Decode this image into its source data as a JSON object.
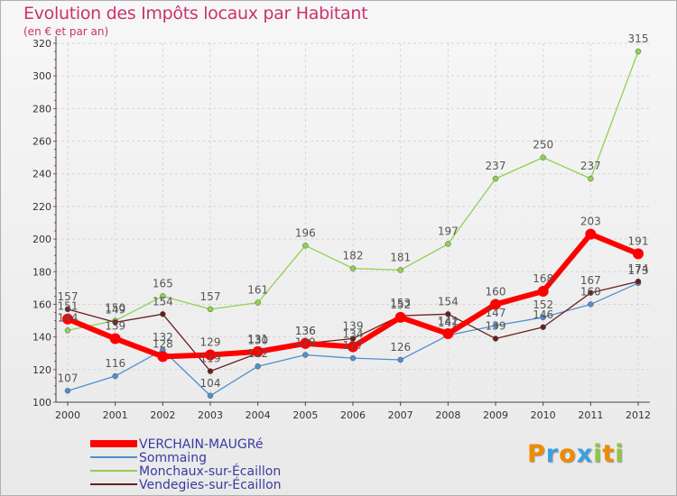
{
  "chart_data": {
    "type": "line",
    "title": "Evolution des Impôts locaux par Habitant",
    "subtitle": "(en € et par an)",
    "x": [
      "2000",
      "2001",
      "2002",
      "2003",
      "2004",
      "2005",
      "2006",
      "2007",
      "2008",
      "2009",
      "2010",
      "2011",
      "2012"
    ],
    "ylim": [
      100,
      320
    ],
    "yticks": [
      100,
      120,
      140,
      160,
      180,
      200,
      220,
      240,
      260,
      280,
      300,
      320
    ],
    "series": [
      {
        "name": "Sommaing",
        "color": "#4f8fcf",
        "values": [
          107,
          116,
          132,
          104,
          122,
          129,
          127,
          126,
          141,
          147,
          152,
          160,
          173
        ]
      },
      {
        "name": "Monchaux-sur-Écaillon",
        "color": "#8fd14f",
        "values": [
          144,
          150,
          165,
          157,
          161,
          196,
          182,
          181,
          197,
          237,
          250,
          237,
          315
        ]
      },
      {
        "name": "Vendegies-sur-Écaillon",
        "color": "#6b1d1d",
        "values": [
          157,
          149,
          154,
          119,
          130,
          136,
          139,
          153,
          154,
          139,
          146,
          167,
          174
        ]
      },
      {
        "name": "VERCHAIN-MAUGRé",
        "color": "#ff0000",
        "values": [
          151,
          139,
          128,
          129,
          131,
          136,
          134,
          152,
          142,
          160,
          168,
          203,
          191
        ]
      }
    ],
    "labels": {
      "Sommaing": [
        "107",
        "116",
        "132",
        "104",
        "122",
        "129",
        "127",
        "126",
        "141",
        "147",
        "152",
        "160",
        "173"
      ],
      "Monchaux-sur-Écaillon": [
        "144",
        "150",
        "165",
        "157",
        "161",
        "196",
        "182",
        "181",
        "197",
        "237",
        "250",
        "237",
        "315"
      ],
      "Vendegies-sur-Écaillon": [
        "157",
        "149",
        "154",
        "119",
        "130",
        "136",
        "139",
        "153",
        "154",
        "139",
        "146",
        "167",
        "174"
      ],
      "VERCHAIN-MAUGRé": [
        "151",
        "139",
        "128",
        "129",
        "131",
        "136",
        "134",
        "152",
        "142",
        "160",
        "168",
        "203",
        "191"
      ]
    },
    "legend": [
      "VERCHAIN-MAUGRé",
      "Sommaing",
      "Monchaux-sur-Écaillon",
      "Vendegies-sur-Écaillon"
    ]
  },
  "logo": {
    "text": "Proxiti",
    "colors": [
      "#f08a00",
      "#3aa0e0",
      "#f08a00",
      "#3aa0e0",
      "#8fc63f",
      "#f08a00",
      "#8fc63f"
    ]
  }
}
